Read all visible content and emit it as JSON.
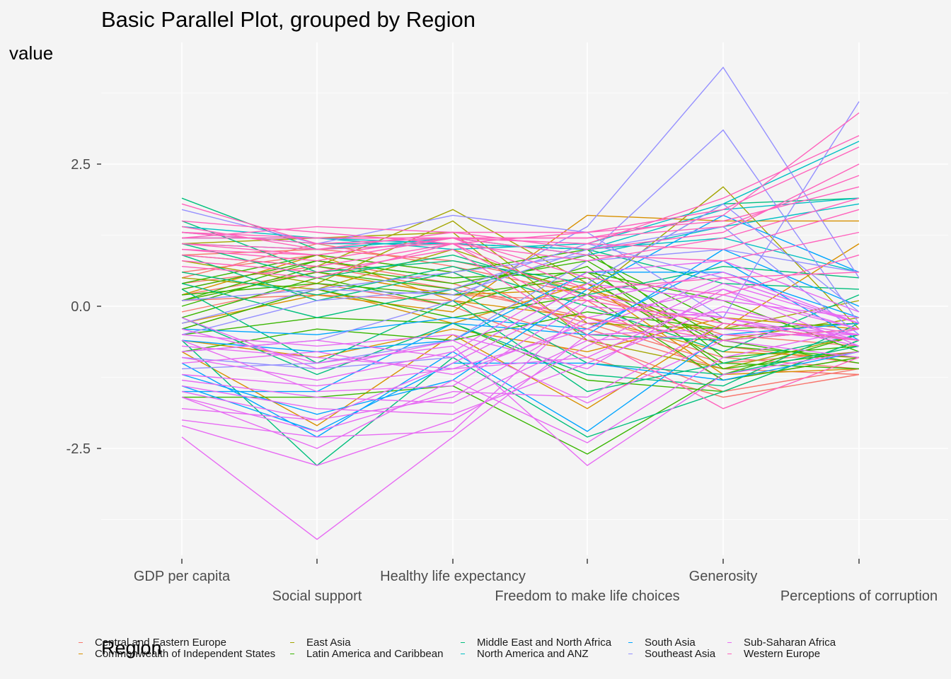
{
  "chart_data": {
    "type": "line",
    "title": "Basic Parallel Plot, grouped by Region",
    "ylabel": "value",
    "xlabel": "",
    "categories": [
      "GDP per capita",
      "Social support",
      "Healthy life expectancy",
      "Freedom to make life choices",
      "Generosity",
      "Perceptions of corruption"
    ],
    "ylim": [
      -4.4,
      4.7
    ],
    "yticks": [
      -2.5,
      0.0,
      2.5
    ],
    "ytick_labels": [
      "-2.5",
      "0.0",
      "2.5"
    ],
    "grid": true,
    "legend": {
      "title": "Region",
      "position": "bottom"
    },
    "series": [
      {
        "name": "Central and Eastern Europe",
        "color": "#F8766D",
        "lines": [
          [
            0.6,
            0.9,
            0.6,
            -0.4,
            -1.1,
            -1.2
          ],
          [
            0.4,
            0.7,
            0.3,
            -0.2,
            -0.9,
            -1.1
          ],
          [
            0.2,
            0.6,
            0.2,
            0.1,
            -1.3,
            -0.9
          ],
          [
            0.9,
            1.0,
            0.8,
            0.3,
            -0.7,
            -1.0
          ],
          [
            0.1,
            0.2,
            0.1,
            -0.6,
            -1.5,
            -1.1
          ],
          [
            0.5,
            1.1,
            0.7,
            0.2,
            -0.5,
            -0.7
          ],
          [
            -0.1,
            0.4,
            0.0,
            -0.9,
            -1.6,
            -1.2
          ],
          [
            0.3,
            0.8,
            0.4,
            -0.3,
            -1.0,
            -0.8
          ]
        ]
      },
      {
        "name": "Commonwealth of Independent States",
        "color": "#D89000",
        "lines": [
          [
            -0.3,
            0.2,
            -0.1,
            1.6,
            1.5,
            1.5
          ],
          [
            0.1,
            0.6,
            0.2,
            0.3,
            -0.4,
            1.1
          ],
          [
            -0.8,
            -2.1,
            -0.5,
            -1.8,
            -0.3,
            -0.6
          ],
          [
            0.2,
            0.9,
            0.1,
            -0.2,
            -0.8,
            -0.9
          ],
          [
            -0.4,
            0.3,
            -0.3,
            0.4,
            -1.2,
            -1.1
          ],
          [
            -0.6,
            -0.9,
            -0.4,
            -0.8,
            -0.2,
            -0.4
          ]
        ]
      },
      {
        "name": "East Asia",
        "color": "#A3A500",
        "lines": [
          [
            0.9,
            0.7,
            1.7,
            0.4,
            -0.6,
            -0.2
          ],
          [
            1.1,
            1.2,
            1.3,
            -0.6,
            -1.1,
            -0.5
          ],
          [
            0.5,
            0.3,
            1.0,
            0.2,
            2.1,
            -0.4
          ],
          [
            0.8,
            0.4,
            1.5,
            -0.3,
            -0.4,
            0.1
          ]
        ]
      },
      {
        "name": "Latin America and Caribbean",
        "color": "#39B600",
        "lines": [
          [
            0.3,
            0.8,
            0.5,
            0.6,
            -0.7,
            -0.9
          ],
          [
            0.1,
            0.6,
            0.3,
            0.9,
            -0.3,
            -0.6
          ],
          [
            -0.2,
            0.5,
            0.0,
            0.7,
            -1.1,
            -0.8
          ],
          [
            -1.6,
            -1.6,
            -1.4,
            -2.6,
            -1.2,
            -0.5
          ],
          [
            0.0,
            0.7,
            0.4,
            0.8,
            -0.6,
            -1.0
          ],
          [
            -0.4,
            0.3,
            -0.2,
            0.2,
            -1.3,
            -0.9
          ],
          [
            0.4,
            0.9,
            0.6,
            1.0,
            -0.9,
            -0.7
          ],
          [
            -0.8,
            -0.4,
            -0.6,
            -0.1,
            -0.4,
            -0.3
          ],
          [
            0.2,
            0.4,
            0.2,
            0.5,
            -1.0,
            -1.1
          ],
          [
            -0.5,
            -0.2,
            -0.3,
            -1.3,
            -1.5,
            -0.6
          ],
          [
            0.1,
            0.8,
            0.5,
            0.6,
            0.1,
            -0.8
          ]
        ]
      },
      {
        "name": "Middle East and North Africa",
        "color": "#00BF7D",
        "lines": [
          [
            1.9,
            1.0,
            1.1,
            1.0,
            0.4,
            0.3
          ],
          [
            1.5,
            0.6,
            0.8,
            0.4,
            1.8,
            1.9
          ],
          [
            0.4,
            -0.2,
            0.3,
            -1.0,
            -1.2,
            -0.7
          ],
          [
            0.9,
            0.1,
            0.6,
            -0.5,
            -0.6,
            -0.4
          ],
          [
            -0.6,
            -2.8,
            -0.9,
            -2.3,
            -1.5,
            -0.6
          ],
          [
            0.3,
            -1.0,
            0.1,
            -1.5,
            -1.0,
            -0.5
          ],
          [
            1.1,
            0.5,
            0.9,
            0.2,
            0.7,
            0.5
          ],
          [
            -0.2,
            -1.2,
            -0.3,
            -1.2,
            -1.4,
            -0.3
          ],
          [
            0.6,
            0.2,
            0.7,
            0.0,
            -0.8,
            0.2
          ]
        ]
      },
      {
        "name": "North America and ANZ",
        "color": "#00BFC4",
        "lines": [
          [
            1.2,
            1.2,
            1.0,
            1.1,
            1.8,
            2.9
          ],
          [
            1.3,
            1.1,
            1.1,
            1.0,
            1.7,
            1.9
          ],
          [
            1.1,
            1.0,
            1.2,
            0.9,
            1.4,
            1.8
          ],
          [
            1.4,
            1.2,
            1.1,
            1.0,
            1.2,
            0.6
          ]
        ]
      },
      {
        "name": "South Asia",
        "color": "#00A5FF",
        "lines": [
          [
            -1.5,
            -1.5,
            -0.3,
            -0.5,
            1.0,
            0.0
          ],
          [
            -1.0,
            -2.3,
            -0.8,
            -2.2,
            -0.5,
            -0.3
          ],
          [
            -0.4,
            -0.5,
            -0.2,
            -0.4,
            0.8,
            -0.6
          ],
          [
            -1.4,
            -2.2,
            -1.0,
            -1.0,
            -1.3,
            -0.8
          ],
          [
            -0.6,
            -0.8,
            -0.6,
            0.6,
            0.6,
            -0.2
          ],
          [
            -1.2,
            -1.9,
            -1.3,
            0.3,
            1.6,
            0.6
          ]
        ]
      },
      {
        "name": "Southeast Asia",
        "color": "#9590FF",
        "lines": [
          [
            -0.8,
            -0.6,
            0.1,
            1.4,
            4.2,
            0.5
          ],
          [
            0.1,
            0.3,
            0.6,
            0.9,
            3.1,
            -0.3
          ],
          [
            1.7,
            1.1,
            1.6,
            1.3,
            -0.2,
            3.6
          ],
          [
            -0.3,
            0.3,
            0.2,
            1.0,
            1.4,
            -0.5
          ],
          [
            -1.1,
            -1.0,
            -0.6,
            0.8,
            1.0,
            0.6
          ],
          [
            -0.5,
            0.1,
            0.3,
            1.1,
            0.5,
            -0.3
          ],
          [
            -0.9,
            -1.1,
            -0.9,
            0.4,
            1.8,
            -0.1
          ]
        ]
      },
      {
        "name": "Sub-Saharan Africa",
        "color": "#E76BF3",
        "lines": [
          [
            -2.3,
            -4.1,
            -2.3,
            -0.5,
            -0.4,
            -0.6
          ],
          [
            -1.6,
            -2.2,
            -1.5,
            -1.6,
            -0.3,
            -0.5
          ],
          [
            -1.2,
            -1.4,
            -1.1,
            -0.9,
            0.2,
            -0.4
          ],
          [
            -2.1,
            -2.8,
            -2.0,
            -0.7,
            0.4,
            -0.3
          ],
          [
            -0.4,
            -1.0,
            -0.7,
            -2.8,
            -1.2,
            -0.8
          ],
          [
            -1.8,
            -2.0,
            -1.6,
            -0.2,
            0.3,
            -0.7
          ],
          [
            -1.0,
            -0.8,
            -1.2,
            -0.3,
            -0.1,
            -0.5
          ],
          [
            -0.8,
            -0.6,
            -0.9,
            0.4,
            0.1,
            -0.2
          ],
          [
            -1.4,
            -1.8,
            -1.9,
            -1.0,
            0.0,
            -0.6
          ],
          [
            -0.2,
            -1.1,
            -0.6,
            -1.7,
            -0.6,
            -0.9
          ],
          [
            -0.6,
            -1.5,
            -1.4,
            0.1,
            0.6,
            -0.3
          ],
          [
            -1.6,
            -2.5,
            -1.3,
            -2.4,
            -0.9,
            -0.4
          ],
          [
            -2.0,
            -2.3,
            -2.2,
            0.0,
            -0.2,
            -0.7
          ],
          [
            -0.9,
            -1.3,
            -0.8,
            0.6,
            0.8,
            -0.1
          ],
          [
            -1.3,
            -1.6,
            -1.7,
            -0.6,
            -0.5,
            -0.5
          ],
          [
            -0.5,
            -0.7,
            -0.5,
            -1.1,
            0.3,
            -0.4
          ],
          [
            -1.5,
            -2.0,
            -1.0,
            0.2,
            -0.2,
            -0.6
          ],
          [
            -0.7,
            -0.9,
            -1.1,
            -0.4,
            0.5,
            -0.3
          ]
        ]
      },
      {
        "name": "Western Europe",
        "color": "#FF62BC",
        "lines": [
          [
            1.3,
            1.1,
            1.2,
            1.2,
            1.6,
            3.4
          ],
          [
            1.2,
            1.2,
            1.2,
            1.1,
            1.9,
            3.0
          ],
          [
            1.5,
            1.3,
            1.1,
            1.3,
            1.7,
            2.8
          ],
          [
            1.1,
            1.0,
            1.3,
            1.0,
            1.3,
            2.5
          ],
          [
            1.0,
            0.9,
            1.2,
            0.5,
            0.2,
            0.9
          ],
          [
            1.2,
            1.4,
            1.3,
            1.3,
            1.5,
            2.1
          ],
          [
            0.9,
            0.7,
            1.1,
            -0.2,
            -0.6,
            -0.4
          ],
          [
            1.0,
            0.8,
            1.2,
            0.3,
            0.5,
            0.6
          ],
          [
            1.4,
            1.0,
            1.1,
            0.8,
            1.2,
            1.9
          ],
          [
            0.8,
            0.6,
            1.0,
            -0.5,
            -1.8,
            -0.9
          ],
          [
            1.3,
            1.2,
            1.2,
            1.1,
            1.0,
            1.7
          ],
          [
            1.1,
            0.9,
            1.2,
            0.9,
            0.8,
            1.3
          ],
          [
            0.7,
            0.5,
            1.1,
            0.1,
            -0.3,
            -0.6
          ],
          [
            1.8,
            1.1,
            1.2,
            1.2,
            1.4,
            2.3
          ]
        ]
      }
    ]
  }
}
